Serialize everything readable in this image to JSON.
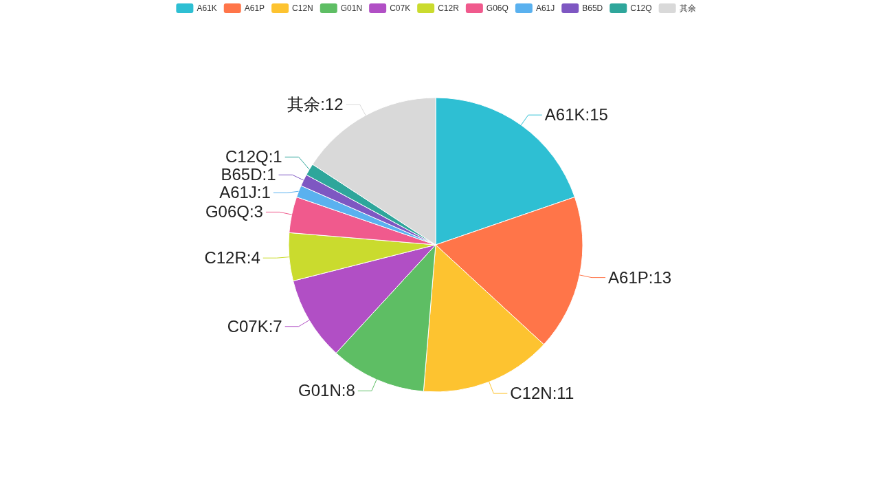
{
  "chart_data": {
    "type": "pie",
    "categories": [
      "A61K",
      "A61P",
      "C12N",
      "G01N",
      "C07K",
      "C12R",
      "G06Q",
      "A61J",
      "B65D",
      "C12Q",
      "其余"
    ],
    "values": [
      15,
      13,
      11,
      8,
      7,
      4,
      3,
      1,
      1,
      1,
      12
    ],
    "colors": [
      "#2ebfd3",
      "#ff7549",
      "#fdc330",
      "#5ebe64",
      "#b14fc5",
      "#cadb2e",
      "#f05a8d",
      "#5ab1ef",
      "#7e57c2",
      "#2ea69b",
      "#d9d9d9"
    ],
    "value_labels": [
      ":15",
      ":13",
      ":11",
      ":8",
      ":7",
      ":4",
      ":3",
      ":1",
      ":1",
      ":1",
      ":12"
    ],
    "legend": "top"
  }
}
